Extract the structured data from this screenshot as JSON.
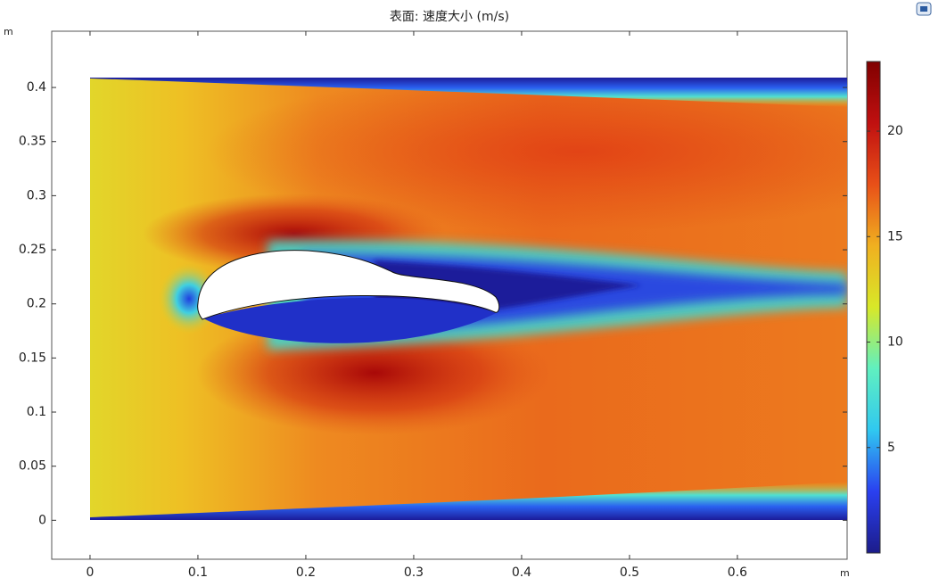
{
  "chart_data": {
    "type": "surface",
    "title": "表面: 速度大小 (m/s)",
    "x_label": "m",
    "y_label": "m",
    "xlim": [
      -0.0355,
      0.7017
    ],
    "ylim": [
      -0.036,
      0.452
    ],
    "xticks": [
      0,
      0.1,
      0.2,
      0.3,
      0.4,
      0.5,
      0.6
    ],
    "yticks": [
      0,
      0.05,
      0.1,
      0.15,
      0.2,
      0.25,
      0.3,
      0.35,
      0.4
    ],
    "colorbar": {
      "lim": [
        0,
        23.3
      ],
      "ticks": [
        5,
        10,
        15,
        20
      ],
      "colormap": [
        "#1c1c8a",
        "#2a40f0",
        "#30c8f0",
        "#60f0c0",
        "#d8e828",
        "#f0b020",
        "#e85018",
        "#c01010",
        "#800000"
      ]
    }
  }
}
